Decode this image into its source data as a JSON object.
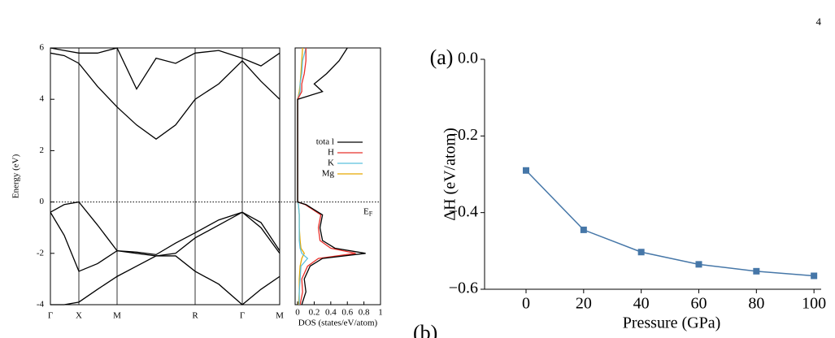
{
  "page": {
    "number": "4",
    "cut_label": "(b)"
  },
  "chart_data": [
    {
      "type": "band",
      "ylabel": "Energy (eV)",
      "ylim": [
        -4,
        6
      ],
      "yticks": [
        -4,
        -2,
        0,
        2,
        4,
        6
      ],
      "xlim": [
        0,
        282
      ],
      "xticks": [
        {
          "value": 0,
          "label": "Γ"
        },
        {
          "value": 35,
          "label": "X"
        },
        {
          "value": 82,
          "label": "M"
        },
        {
          "value": 178,
          "label": "R"
        },
        {
          "value": 236,
          "label": "Γ"
        },
        {
          "value": 282,
          "label": "M"
        }
      ],
      "fermi_level": 0,
      "fermi_label": [
        "E",
        "F"
      ],
      "x": [
        0,
        17,
        35,
        58,
        82,
        106,
        130,
        154,
        178,
        207,
        236,
        259,
        282
      ],
      "series": [
        {
          "color": "#000000",
          "values": [
            -0.4,
            -0.1,
            0,
            -0.9,
            -1.9,
            -1.95,
            -2.05,
            -1.6,
            -1.2,
            -0.7,
            -0.4,
            -0.8,
            -1.9
          ]
        },
        {
          "color": "#000000",
          "values": [
            -0.4,
            -1.3,
            -2.7,
            -2.4,
            -1.9,
            -2.0,
            -2.1,
            -2.0,
            -1.4,
            -0.9,
            -0.4,
            -1.0,
            -2.0
          ]
        },
        {
          "color": "#000000",
          "values": [
            -4.0,
            -4.0,
            -3.9,
            -3.4,
            -2.9,
            -2.5,
            -2.1,
            -2.1,
            -2.7,
            -3.2,
            -4.0,
            -3.4,
            -2.9
          ]
        },
        {
          "color": "#000000",
          "values": [
            5.8,
            5.7,
            5.4,
            4.5,
            3.7,
            3.0,
            2.45,
            3.0,
            4.0,
            4.6,
            5.5,
            4.7,
            4.0
          ]
        },
        {
          "color": "#000000",
          "values": [
            6.0,
            5.9,
            5.8,
            5.8,
            6.0,
            4.4,
            5.6,
            5.4,
            5.8,
            5.9,
            5.6,
            5.3,
            5.8
          ]
        }
      ]
    },
    {
      "type": "dos",
      "xlabel": "DOS (states/eV/atom)",
      "xlim": [
        -0.03,
        1.0
      ],
      "ylim": [
        -4,
        6
      ],
      "xticks": [
        0,
        0.2,
        0.4,
        0.6,
        0.8,
        1
      ],
      "energy": [
        -4,
        -3.5,
        -3,
        -2.5,
        -2.2,
        -2,
        -1.8,
        -1.5,
        -1,
        -0.5,
        -0.1,
        0,
        1,
        2,
        3,
        4,
        4.3,
        4.6,
        5,
        5.5,
        6
      ],
      "series": [
        {
          "name": "tota l",
          "color": "#000000",
          "values": [
            0.05,
            0.1,
            0.08,
            0.15,
            0.3,
            0.82,
            0.45,
            0.3,
            0.27,
            0.3,
            0.1,
            0,
            0,
            0,
            0,
            0,
            0.3,
            0.2,
            0.35,
            0.5,
            0.6
          ]
        },
        {
          "name": "H",
          "color": "#e8302a",
          "values": [
            0.03,
            0.06,
            0.05,
            0.12,
            0.25,
            0.7,
            0.4,
            0.27,
            0.25,
            0.28,
            0.09,
            0,
            0,
            0,
            0,
            0,
            0.05,
            0.05,
            0.08,
            0.1,
            0.1
          ]
        },
        {
          "name": "K",
          "color": "#5bc0de",
          "values": [
            0.02,
            0.02,
            0.03,
            0.04,
            0.12,
            0.05,
            0.03,
            0.02,
            0.02,
            0.02,
            0.01,
            0,
            0,
            0,
            0,
            0,
            0.03,
            0.03,
            0.05,
            0.06,
            0.1
          ]
        },
        {
          "name": "Mg",
          "color": "#e8a800",
          "values": [
            0.01,
            0.02,
            0.02,
            0.03,
            0.05,
            0.08,
            0.04,
            0.03,
            0.02,
            0.02,
            0.01,
            0,
            0,
            0,
            0,
            0,
            0.02,
            0.03,
            0.04,
            0.05,
            0.06
          ]
        }
      ]
    },
    {
      "type": "line",
      "title": "(a)",
      "xlabel": "Pressure (GPa)",
      "ylabel": "ΔH (eV/atom)",
      "x": [
        0,
        20,
        40,
        60,
        80,
        100
      ],
      "values": [
        -0.29,
        -0.445,
        -0.503,
        -0.535,
        -0.553,
        -0.565
      ],
      "color": "#4677a8",
      "xlim": [
        -14.4,
        102.5
      ],
      "xticks": [
        0,
        20,
        40,
        60,
        80,
        100
      ],
      "ylim": [
        -0.6,
        0.0
      ],
      "yticks": [
        {
          "value": 0.0,
          "label": "0.0"
        },
        {
          "value": -0.2,
          "label": "−0.2"
        },
        {
          "value": -0.4,
          "label": "−0.4"
        },
        {
          "value": -0.6,
          "label": "−0.6"
        }
      ]
    }
  ]
}
